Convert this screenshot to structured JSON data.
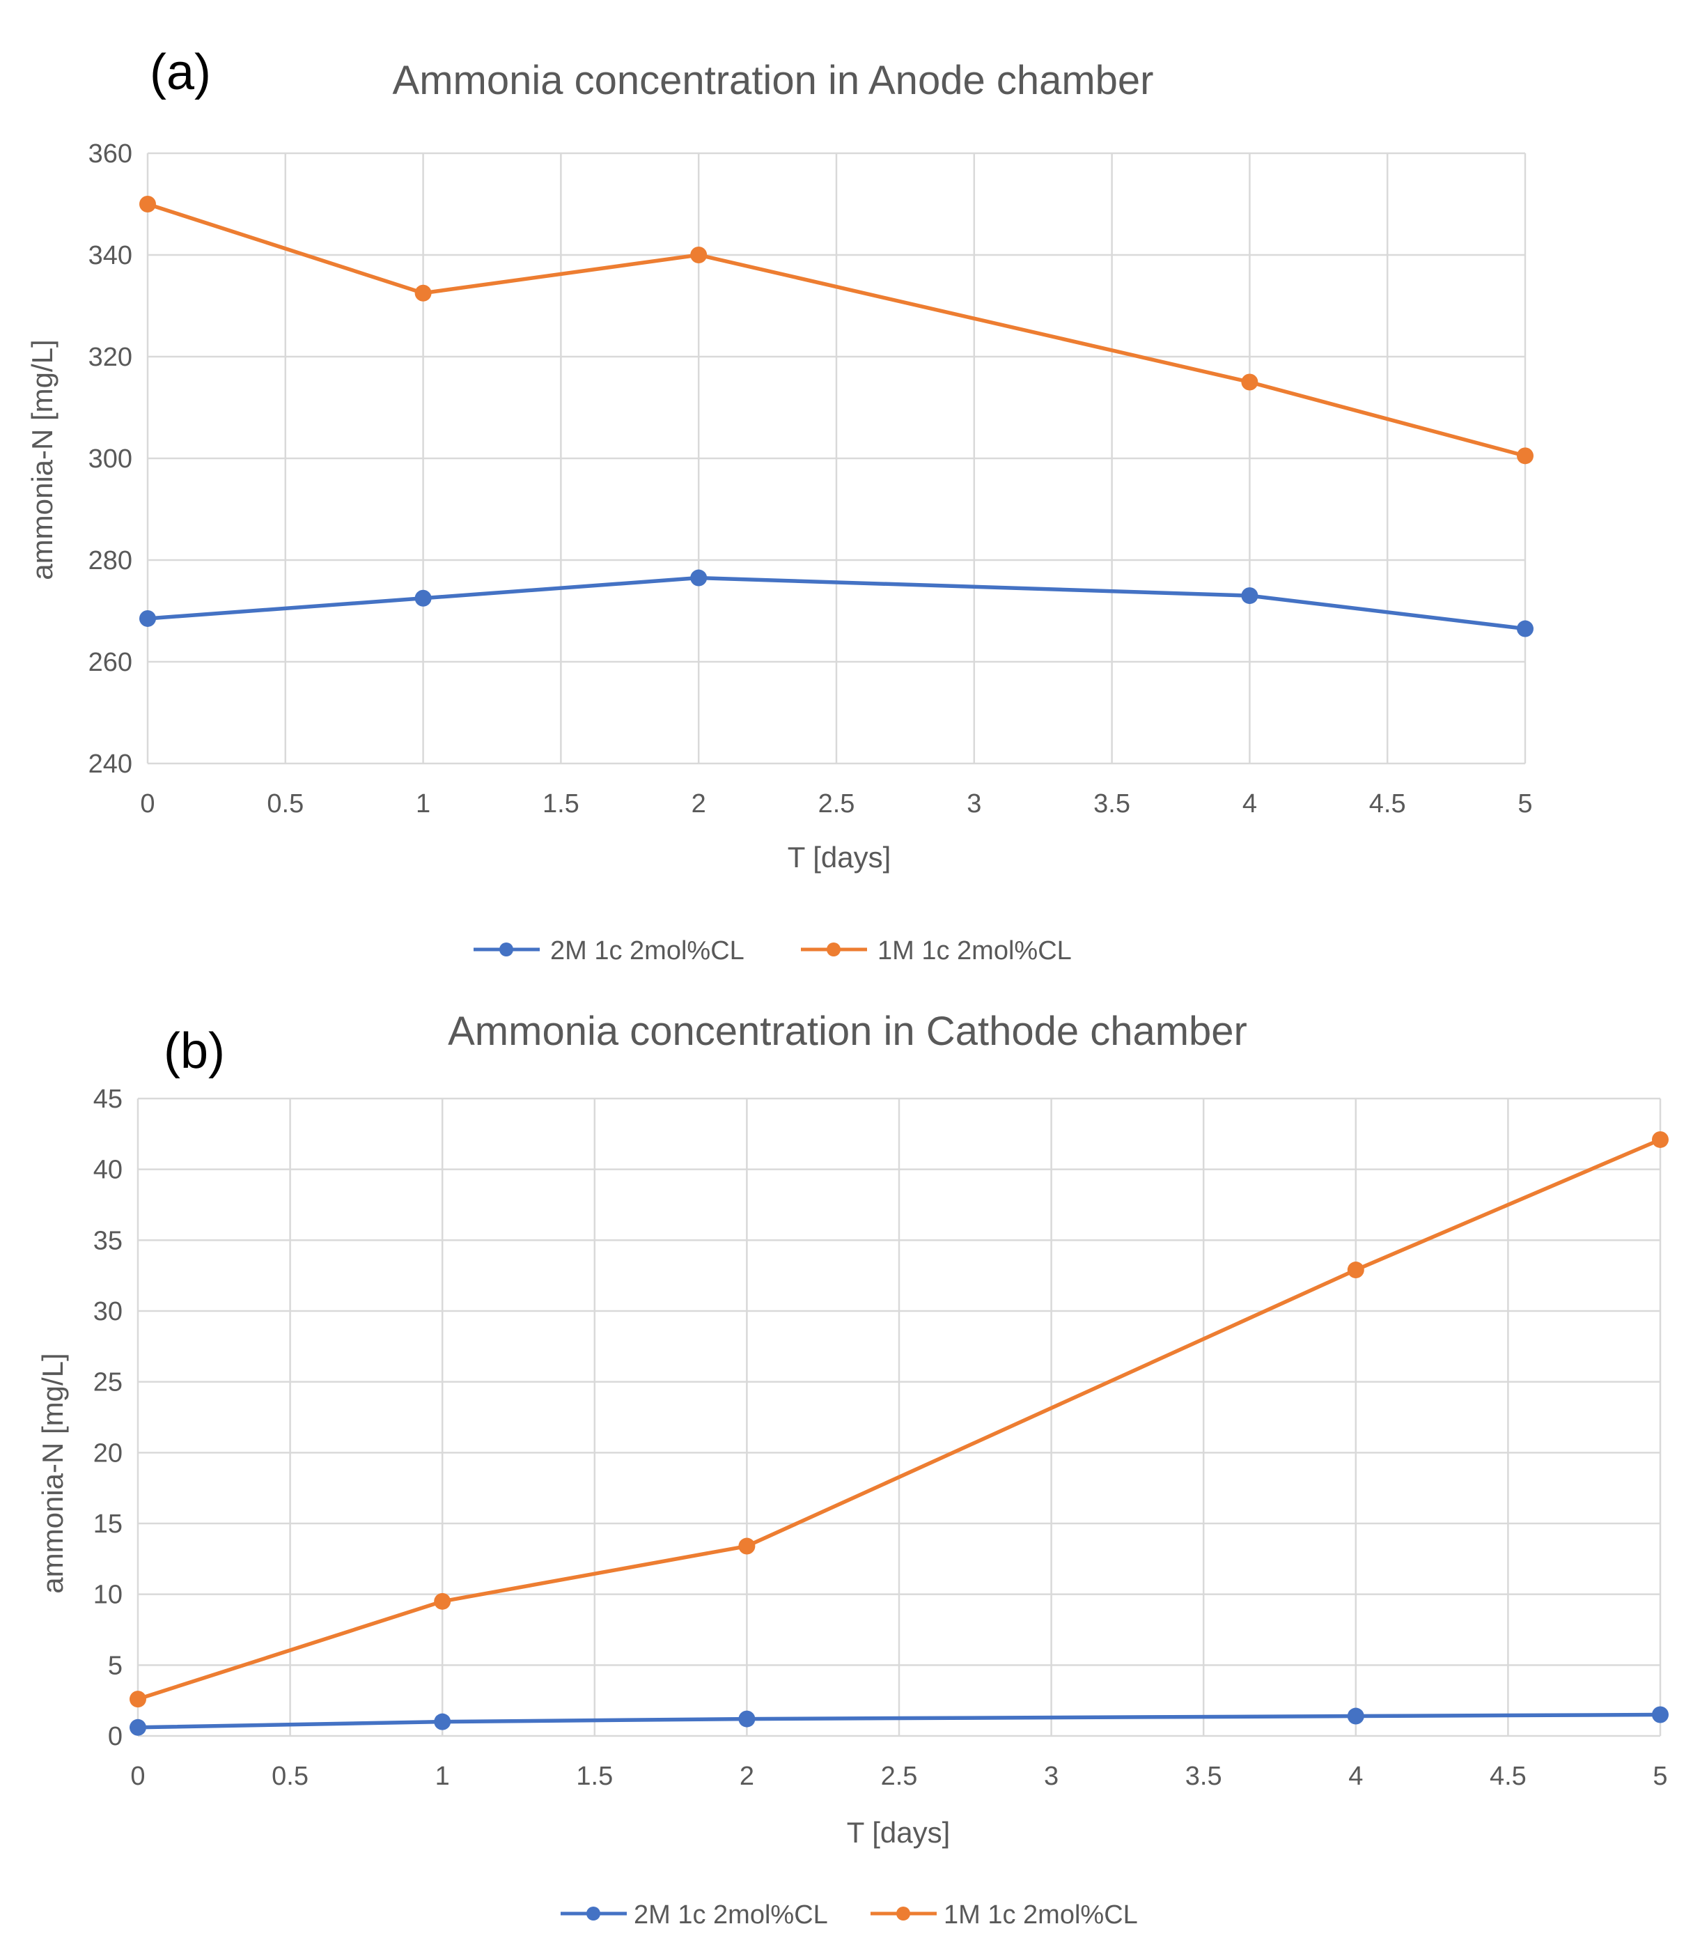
{
  "chart_data": [
    {
      "type": "line",
      "panel_label": "(a)",
      "title": "Ammonia concentration in Anode chamber",
      "xlabel": "T [days]",
      "ylabel": "ammonia-N [mg/L]",
      "xlim": [
        0,
        5
      ],
      "ylim": [
        240,
        360
      ],
      "xticks": [
        0,
        0.5,
        1,
        1.5,
        2,
        2.5,
        3,
        3.5,
        4,
        4.5,
        5
      ],
      "yticks": [
        240,
        260,
        280,
        300,
        320,
        340,
        360
      ],
      "grid": true,
      "legend_position": "bottom",
      "series": [
        {
          "name": "2M 1c 2mol%CL",
          "color": "#4472c4",
          "x": [
            0,
            1,
            2,
            4,
            5
          ],
          "y": [
            268.5,
            272.5,
            276.5,
            273,
            266.5
          ]
        },
        {
          "name": "1M 1c 2mol%CL",
          "color": "#ed7d31",
          "x": [
            0,
            1,
            2,
            4,
            5
          ],
          "y": [
            350,
            332.5,
            340,
            315,
            300.5
          ]
        }
      ]
    },
    {
      "type": "line",
      "panel_label": "(b)",
      "title": "Ammonia concentration in Cathode chamber",
      "xlabel": "T [days]",
      "ylabel": "ammonia-N [mg/L]",
      "xlim": [
        0,
        5
      ],
      "ylim": [
        0,
        45
      ],
      "xticks": [
        0,
        0.5,
        1,
        1.5,
        2,
        2.5,
        3,
        3.5,
        4,
        4.5,
        5
      ],
      "yticks": [
        0,
        5,
        10,
        15,
        20,
        25,
        30,
        35,
        40,
        45
      ],
      "grid": true,
      "legend_position": "bottom",
      "series": [
        {
          "name": "2M 1c 2mol%CL",
          "color": "#4472c4",
          "x": [
            0,
            1,
            2,
            4,
            5
          ],
          "y": [
            0.6,
            1.0,
            1.2,
            1.4,
            1.5
          ]
        },
        {
          "name": "1M 1c 2mol%CL",
          "color": "#ed7d31",
          "x": [
            0,
            1,
            2,
            4,
            5
          ],
          "y": [
            2.6,
            9.5,
            13.4,
            32.9,
            42.1
          ]
        }
      ]
    }
  ]
}
